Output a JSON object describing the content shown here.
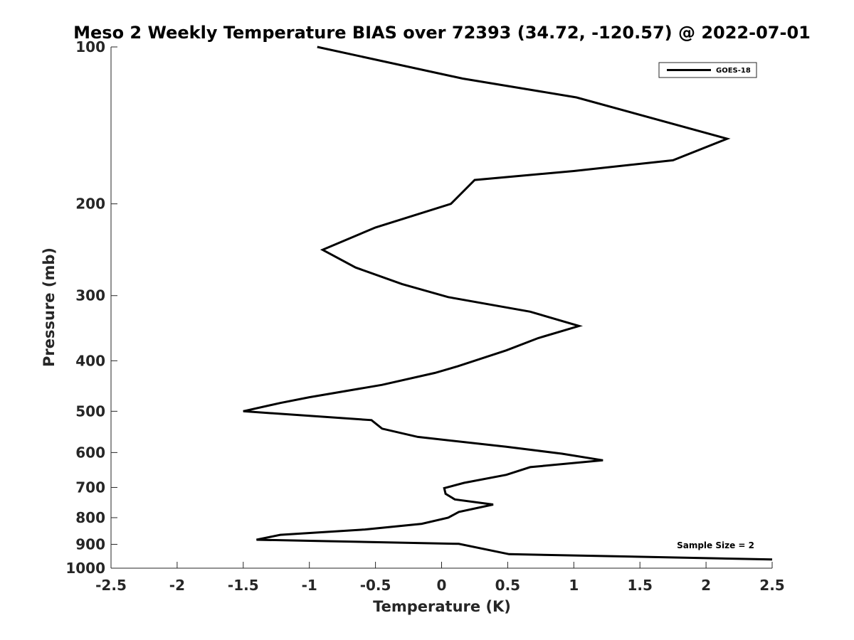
{
  "chart_data": {
    "type": "line",
    "title": "Meso 2 Weekly Temperature BIAS over 72393 (34.72, -120.57) @ 2022-07-01",
    "xlabel": "Temperature (K)",
    "ylabel": "Pressure (mb)",
    "xlim": [
      -2.5,
      2.5
    ],
    "ylim": [
      100,
      1000
    ],
    "yscale": "log",
    "yreversed": true,
    "xticks": [
      -2.5,
      -2,
      -1.5,
      -1,
      -0.5,
      0,
      0.5,
      1,
      1.5,
      2,
      2.5
    ],
    "xtick_labels": [
      "-2.5",
      "-2",
      "-1.5",
      "-1",
      "-0.5",
      "0",
      "0.5",
      "1",
      "1.5",
      "2",
      "2.5"
    ],
    "yticks": [
      100,
      200,
      300,
      400,
      500,
      600,
      700,
      800,
      900,
      1000
    ],
    "ytick_labels": [
      "100",
      "200",
      "300",
      "400",
      "500",
      "600",
      "700",
      "800",
      "900",
      "1000"
    ],
    "grid": false,
    "legend": "top-right",
    "annotation": "Sample Size = 2",
    "series": [
      {
        "name": "GOES-18",
        "color": "#000000",
        "points": [
          [
            -0.94,
            100
          ],
          [
            0.16,
            115
          ],
          [
            1.02,
            125
          ],
          [
            2.16,
            150
          ],
          [
            1.75,
            165
          ],
          [
            1.0,
            173
          ],
          [
            0.25,
            180
          ],
          [
            0.07,
            200
          ],
          [
            -0.5,
            222
          ],
          [
            -0.9,
            245
          ],
          [
            -0.65,
            265
          ],
          [
            -0.3,
            285
          ],
          [
            0.05,
            302
          ],
          [
            0.67,
            322
          ],
          [
            1.04,
            343
          ],
          [
            0.73,
            362
          ],
          [
            0.49,
            382
          ],
          [
            0.12,
            410
          ],
          [
            -0.05,
            422
          ],
          [
            -0.45,
            445
          ],
          [
            -1.0,
            470
          ],
          [
            -1.22,
            482
          ],
          [
            -1.5,
            500
          ],
          [
            -0.53,
            520
          ],
          [
            -0.45,
            540
          ],
          [
            -0.18,
            560
          ],
          [
            0.49,
            585
          ],
          [
            0.91,
            603
          ],
          [
            1.22,
            621
          ],
          [
            0.67,
            640
          ],
          [
            0.49,
            662
          ],
          [
            0.17,
            686
          ],
          [
            0.02,
            702
          ],
          [
            0.03,
            720
          ],
          [
            0.1,
            738
          ],
          [
            0.39,
            755
          ],
          [
            0.13,
            780
          ],
          [
            0.05,
            800
          ],
          [
            -0.15,
            822
          ],
          [
            -0.58,
            843
          ],
          [
            -1.22,
            863
          ],
          [
            -1.4,
            882
          ],
          [
            0.13,
            898
          ],
          [
            0.51,
            940
          ],
          [
            2.5,
            962
          ]
        ]
      }
    ]
  }
}
